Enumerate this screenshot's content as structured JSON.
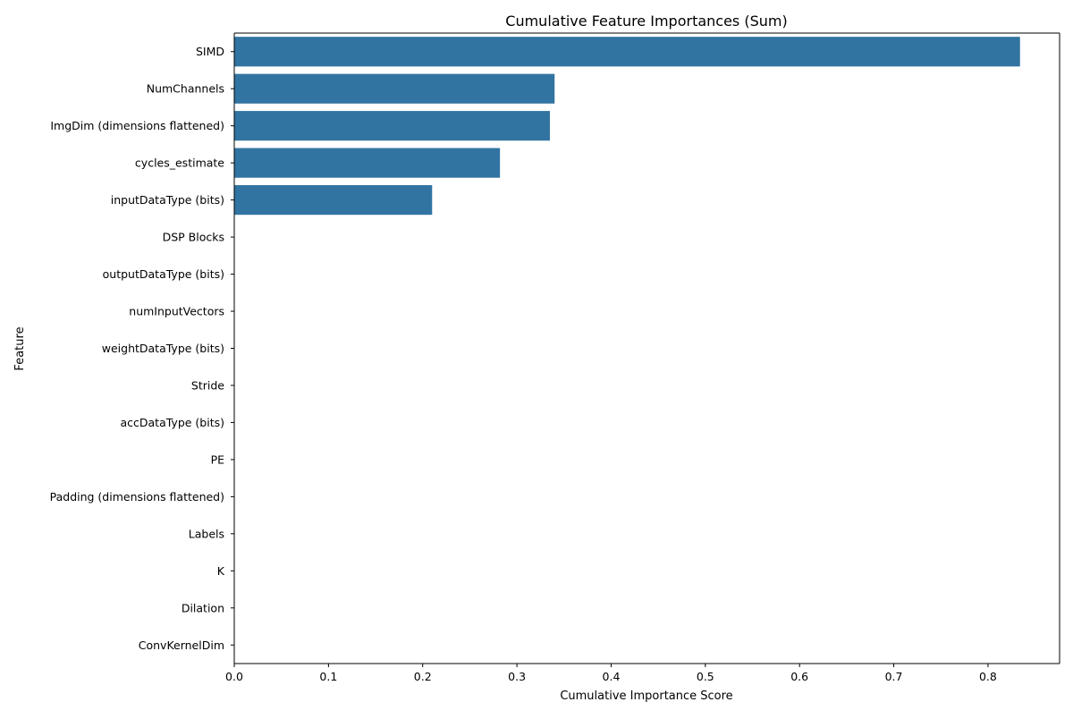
{
  "chart_data": {
    "type": "bar",
    "orientation": "horizontal",
    "title": "Cumulative Feature Importances (Sum)",
    "xlabel": "Cumulative Importance Score",
    "ylabel": "Feature",
    "categories": [
      "SIMD",
      "NumChannels",
      "ImgDim (dimensions flattened)",
      "cycles_estimate",
      "inputDataType (bits)",
      "DSP Blocks",
      "outputDataType (bits)",
      "numInputVectors",
      "weightDataType (bits)",
      "Stride",
      "accDataType (bits)",
      "PE",
      "Padding (dimensions flattened)",
      "Labels",
      "K",
      "Dilation",
      "ConvKernelDim"
    ],
    "values": [
      0.834,
      0.34,
      0.335,
      0.282,
      0.21,
      0,
      0,
      0,
      0,
      0,
      0,
      0,
      0,
      0,
      0,
      0,
      0
    ],
    "xlim": [
      0,
      0.876
    ],
    "xticks": [
      0.0,
      0.1,
      0.2,
      0.3,
      0.4,
      0.5,
      0.6,
      0.7,
      0.8
    ],
    "xtick_labels": [
      "0.0",
      "0.1",
      "0.2",
      "0.3",
      "0.4",
      "0.5",
      "0.6",
      "0.7",
      "0.8"
    ],
    "grid": false,
    "bar_color": "#3274a1"
  }
}
